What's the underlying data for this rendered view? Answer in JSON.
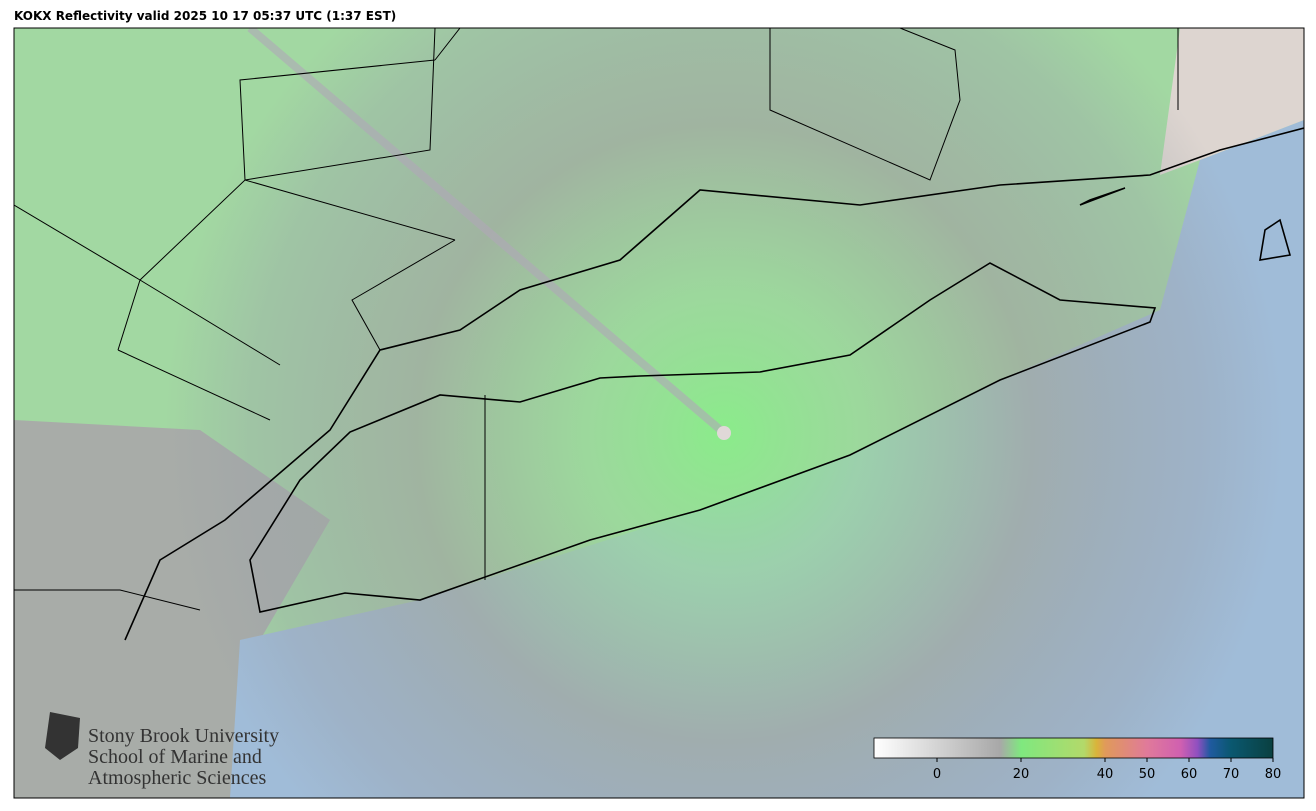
{
  "title": "KOKX Reflectivity valid 2025 10 17 05:37 UTC (1:37 EST)",
  "logo": {
    "lines": [
      "Stony Brook University",
      "School of Marine and",
      "Atmospheric Sciences"
    ]
  },
  "colorbar": {
    "lim": [
      -15,
      80
    ],
    "ticks": [
      0,
      20,
      40,
      50,
      60,
      70,
      80
    ],
    "stops": [
      {
        "value": -15,
        "color": "#ffffff"
      },
      {
        "value": 15,
        "color": "#a8a8a8"
      },
      {
        "value": 20,
        "color": "#7fe87f"
      },
      {
        "value": 35,
        "color": "#b3d96a"
      },
      {
        "value": 38,
        "color": "#d9b43a"
      },
      {
        "value": 40,
        "color": "#e09a5a"
      },
      {
        "value": 50,
        "color": "#e07a9a"
      },
      {
        "value": 58,
        "color": "#d060b0"
      },
      {
        "value": 62,
        "color": "#9050c0"
      },
      {
        "value": 65,
        "color": "#205aa0"
      },
      {
        "value": 70,
        "color": "#0a5870"
      },
      {
        "value": 80,
        "color": "#0a4040"
      }
    ]
  }
}
